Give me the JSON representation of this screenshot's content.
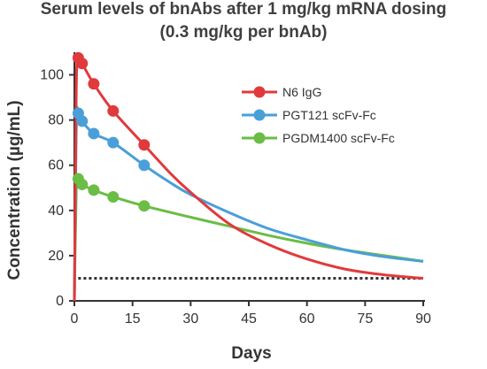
{
  "title": {
    "line1": "Serum levels of bnAbs after 1 mg/kg mRNA dosing",
    "line2": "(0.3 mg/kg per bnAb)"
  },
  "chart_data": {
    "type": "line",
    "xlabel": "Days",
    "ylabel": "Concentration (µg/mL)",
    "xlim": [
      0,
      90
    ],
    "ylim": [
      0,
      110
    ],
    "xticks": [
      0,
      15,
      30,
      45,
      60,
      75,
      90
    ],
    "yticks": [
      0,
      20,
      40,
      60,
      80,
      100
    ],
    "grid": false,
    "legend_position": "top-right",
    "threshold": {
      "y": 10,
      "style": "dotted",
      "color": "#333333"
    },
    "series": [
      {
        "name": "N6 IgG",
        "color": "#e03a3c",
        "points": [
          [
            1,
            107.5
          ],
          [
            2,
            105
          ],
          [
            5,
            96
          ],
          [
            10,
            84
          ],
          [
            18,
            69
          ]
        ],
        "curve": [
          [
            0,
            0
          ],
          [
            0.5,
            95
          ],
          [
            1,
            107.5
          ],
          [
            2,
            105
          ],
          [
            5,
            96
          ],
          [
            10,
            84
          ],
          [
            18,
            69
          ],
          [
            25,
            56
          ],
          [
            30,
            48
          ],
          [
            40,
            34
          ],
          [
            50,
            25
          ],
          [
            60,
            18.5
          ],
          [
            70,
            14
          ],
          [
            80,
            11.5
          ],
          [
            90,
            10
          ]
        ]
      },
      {
        "name": "PGT121 scFv-Fc",
        "color": "#4a9fd8",
        "points": [
          [
            1,
            83
          ],
          [
            2,
            79.5
          ],
          [
            5,
            74
          ],
          [
            10,
            70
          ],
          [
            18,
            60
          ]
        ],
        "curve": [
          [
            0,
            0
          ],
          [
            0.5,
            78
          ],
          [
            1,
            83
          ],
          [
            2,
            79.5
          ],
          [
            5,
            74
          ],
          [
            10,
            70
          ],
          [
            18,
            60
          ],
          [
            25,
            52
          ],
          [
            30,
            47
          ],
          [
            40,
            39
          ],
          [
            50,
            32
          ],
          [
            60,
            27
          ],
          [
            70,
            22.5
          ],
          [
            80,
            19.5
          ],
          [
            90,
            17.5
          ]
        ]
      },
      {
        "name": "PGDM1400 scFv-Fc",
        "color": "#6abd45",
        "points": [
          [
            1,
            54
          ],
          [
            2,
            51.5
          ],
          [
            5,
            49
          ],
          [
            10,
            46
          ],
          [
            18,
            42
          ]
        ],
        "curve": [
          [
            0,
            0
          ],
          [
            0.5,
            50
          ],
          [
            1,
            54
          ],
          [
            2,
            51.5
          ],
          [
            5,
            49
          ],
          [
            10,
            46
          ],
          [
            18,
            42
          ],
          [
            30,
            37
          ],
          [
            40,
            33
          ],
          [
            50,
            29
          ],
          [
            60,
            25.5
          ],
          [
            70,
            22.5
          ],
          [
            80,
            20
          ],
          [
            90,
            17.5
          ]
        ]
      }
    ]
  }
}
